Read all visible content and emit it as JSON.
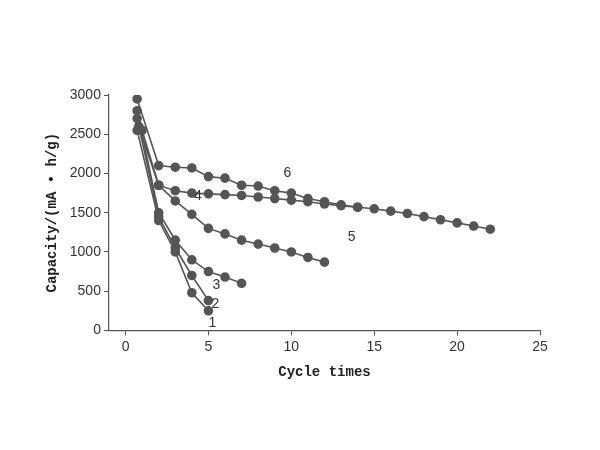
{
  "chart_data": {
    "type": "line",
    "x_label": "Cycle times",
    "y_label": "Capacity/(mA • h/g)",
    "xlim": [
      -1,
      25
    ],
    "xticks": [
      0,
      5,
      10,
      15,
      20,
      25
    ],
    "ylim": [
      0,
      3000
    ],
    "yticks": [
      0,
      500,
      1000,
      1500,
      2000,
      2500,
      3000
    ],
    "grid": false,
    "marker": "circle",
    "color": "#555555",
    "series": [
      {
        "name": "1",
        "x": [
          0.7,
          2,
          3,
          4,
          5
        ],
        "values": [
          2550,
          1400,
          1000,
          480,
          250
        ]
      },
      {
        "name": "2",
        "x": [
          0.7,
          2,
          3,
          4,
          5
        ],
        "values": [
          2700,
          1450,
          1050,
          700,
          380
        ]
      },
      {
        "name": "3",
        "x": [
          0.7,
          2,
          3,
          4,
          5,
          6,
          7
        ],
        "values": [
          2800,
          1500,
          1150,
          900,
          750,
          680,
          600
        ]
      },
      {
        "name": "4",
        "x": [
          0.8,
          2,
          3,
          4,
          5,
          6,
          7,
          8,
          9,
          10,
          11,
          12
        ],
        "values": [
          2600,
          1850,
          1650,
          1480,
          1300,
          1230,
          1150,
          1100,
          1050,
          1000,
          930,
          870
        ]
      },
      {
        "name": "5",
        "x": [
          1,
          2,
          3,
          4,
          5,
          6,
          7,
          8,
          9,
          10,
          11,
          12,
          13,
          14,
          15,
          16,
          17,
          18,
          19,
          20,
          21,
          22
        ],
        "values": [
          2550,
          1850,
          1780,
          1750,
          1740,
          1730,
          1720,
          1700,
          1680,
          1660,
          1640,
          1610,
          1590,
          1570,
          1550,
          1520,
          1490,
          1450,
          1410,
          1370,
          1330,
          1290
        ]
      },
      {
        "name": "6",
        "x": [
          0.7,
          2,
          3,
          4,
          5,
          6,
          7,
          8,
          9,
          10,
          11,
          12,
          13,
          14
        ],
        "values": [
          2950,
          2100,
          2080,
          2070,
          1960,
          1940,
          1850,
          1840,
          1780,
          1750,
          1680,
          1640,
          1600,
          1570
        ]
      }
    ]
  }
}
